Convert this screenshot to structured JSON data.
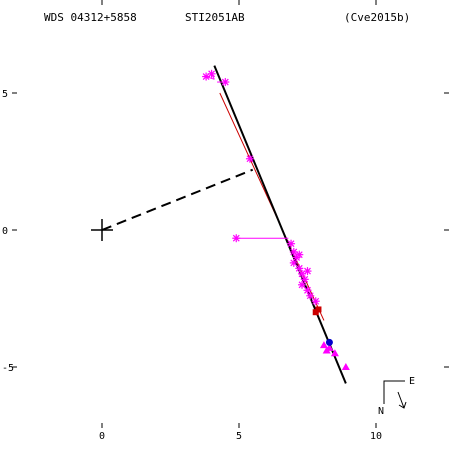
{
  "header": {
    "left": "WDS 04312+5858",
    "center": "STI2051AB",
    "right": "(Cve2015b)"
  },
  "chart_data": {
    "type": "scatter",
    "title": "STI2051AB",
    "xlim": [
      -3.7,
      12.4
    ],
    "ylim": [
      -8.0,
      8.0
    ],
    "x_ticks": [
      0,
      5,
      10
    ],
    "y_ticks": [
      5,
      0,
      -5
    ],
    "x_tick_labels": [
      "0",
      "5",
      "10"
    ],
    "y_tick_labels": [
      "5",
      "0",
      "-5"
    ],
    "primary": [
      0,
      0
    ],
    "orbit_line": [
      [
        4.1,
        6.0
      ],
      [
        8.9,
        -5.6
      ]
    ],
    "ephemeris_line": [
      [
        4.3,
        5.0
      ],
      [
        8.1,
        -3.3
      ]
    ],
    "node_line": [
      [
        0,
        0
      ],
      [
        5.5,
        2.2
      ]
    ],
    "observation_residuals": [
      {
        "from": [
          3.8,
          5.6
        ],
        "to": [
          4.1,
          5.5
        ]
      },
      {
        "from": [
          4.0,
          5.7
        ],
        "to": [
          4.1,
          5.5
        ]
      },
      {
        "from": [
          4.5,
          5.4
        ],
        "to": [
          4.2,
          5.4
        ]
      },
      {
        "from": [
          5.4,
          2.6
        ],
        "to": [
          5.5,
          2.5
        ]
      },
      {
        "from": [
          4.9,
          -0.3
        ],
        "to": [
          6.8,
          -0.3
        ]
      }
    ],
    "measurements_star": [
      [
        3.8,
        5.6
      ],
      [
        4.0,
        5.7
      ],
      [
        4.5,
        5.4
      ],
      [
        5.4,
        2.6
      ],
      [
        4.9,
        -0.3
      ],
      [
        6.9,
        -0.5
      ],
      [
        7.0,
        -0.8
      ],
      [
        7.1,
        -1.0
      ],
      [
        7.0,
        -1.2
      ],
      [
        7.2,
        -1.4
      ],
      [
        7.3,
        -1.6
      ],
      [
        7.4,
        -1.8
      ],
      [
        7.3,
        -2.0
      ],
      [
        7.5,
        -2.2
      ],
      [
        7.6,
        -2.4
      ],
      [
        7.8,
        -2.6
      ],
      [
        7.2,
        -0.9
      ],
      [
        7.5,
        -1.5
      ]
    ],
    "measurements_triangle": [
      [
        8.1,
        -4.2
      ],
      [
        8.3,
        -4.3
      ],
      [
        8.5,
        -4.5
      ],
      [
        8.9,
        -5.0
      ],
      [
        8.2,
        -4.4
      ]
    ],
    "measurements_square": [
      [
        7.9,
        -2.9
      ],
      [
        7.8,
        -3.0
      ]
    ],
    "measurements_circle": [
      [
        8.3,
        -4.1
      ]
    ],
    "colors": {
      "orbit": "#000000",
      "ephemeris": "#cc0000",
      "measurement": "#ff00ff",
      "square": "#cc0000",
      "circle": "#0000cc"
    }
  },
  "compass": {
    "north": "N",
    "east": "E"
  }
}
